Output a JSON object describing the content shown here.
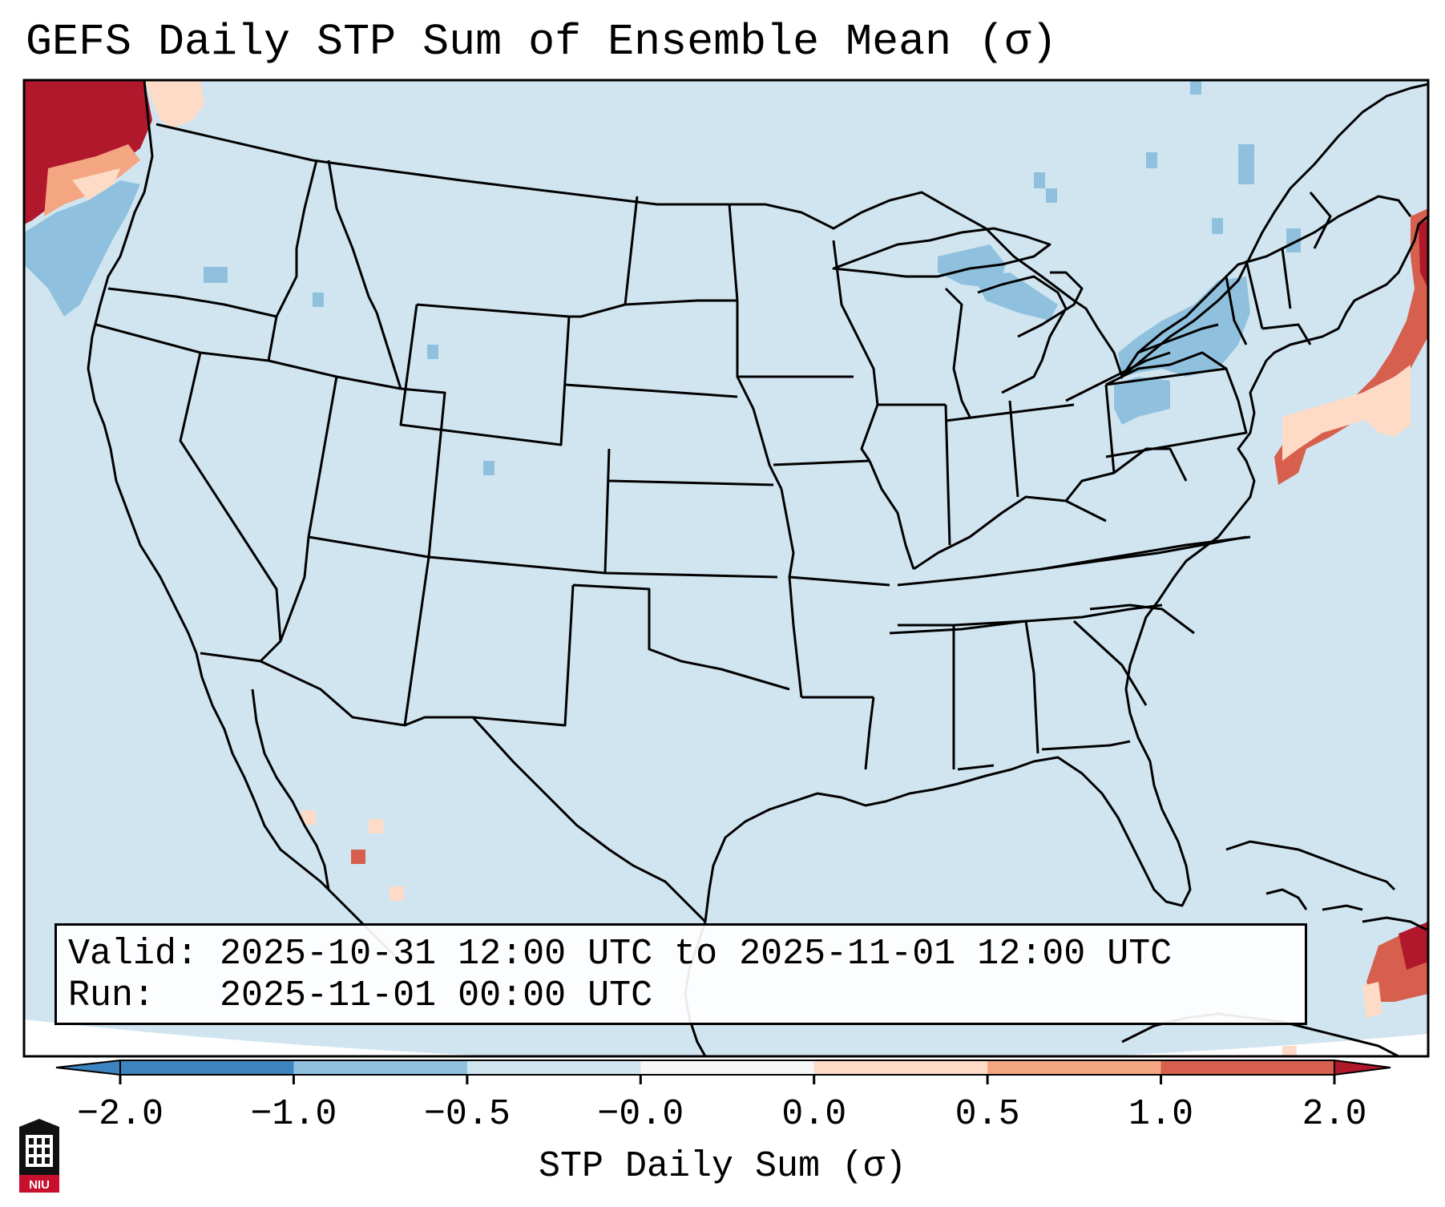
{
  "title": "GEFS Daily STP Sum of Ensemble Mean (σ)",
  "valid_label": "Valid:",
  "valid_value": "2025-10-31 12:00 UTC to 2025-11-01 12:00 UTC",
  "run_label": "Run:",
  "run_value": "2025-11-01 00:00 UTC",
  "colorbar": {
    "label": "STP Daily Sum (σ)",
    "ticks": [
      "−2.0",
      "−1.0",
      "−0.5",
      "−0.0",
      "0.0",
      "0.5",
      "1.0",
      "2.0"
    ],
    "colors": [
      "#3d83bf",
      "#8fc1de",
      "#d1e5f0",
      "#f7f7f7",
      "#fddbc7",
      "#f4a582",
      "#d6604d",
      "#b2182b"
    ],
    "extend": "both"
  },
  "logo_text": "NIU",
  "map": {
    "projection": "Lambert Conformal",
    "extent": "CONUS",
    "background_color": "#d1e5f0",
    "features": [
      "coastlines",
      "country borders",
      "state borders"
    ]
  }
}
